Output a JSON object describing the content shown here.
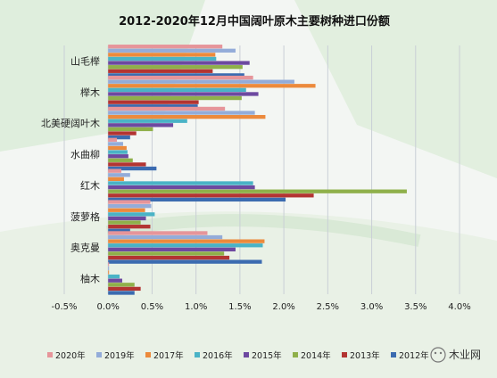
{
  "watermark": "木业网",
  "chart_data": {
    "type": "bar",
    "orientation": "horizontal",
    "title": "2012-2020年12月中国阔叶原木主要树种进口份额",
    "categories": [
      "山毛榉",
      "榉木",
      "北美硬阔叶木",
      "水曲柳",
      "红木",
      "菠萝格",
      "奥克曼",
      "柚木"
    ],
    "xlim": [
      -0.5,
      4.0
    ],
    "xticks": [
      "-0.5%",
      "0.0%",
      "0.5%",
      "1.0%",
      "1.5%",
      "2.0%",
      "2.5%",
      "3.0%",
      "3.5%",
      "4.0%"
    ],
    "xtick_values": [
      -0.5,
      0,
      0.5,
      1.0,
      1.5,
      2.0,
      2.5,
      3.0,
      3.5,
      4.0
    ],
    "grid": "vertical",
    "legend_position": "bottom",
    "series": [
      {
        "name": "2020年",
        "color": "#e6959a",
        "values": [
          1.3,
          1.65,
          1.33,
          0.1,
          0.15,
          0.48,
          1.13,
          0.01
        ]
      },
      {
        "name": "2019年",
        "color": "#93acd9",
        "values": [
          1.45,
          2.12,
          1.67,
          0.17,
          0.25,
          0.49,
          1.3,
          0.01
        ]
      },
      {
        "name": "2017年",
        "color": "#ec8a3c",
        "values": [
          1.22,
          2.36,
          1.79,
          0.21,
          0.18,
          0.42,
          1.78,
          0.01
        ]
      },
      {
        "name": "2016年",
        "color": "#4ab3c6",
        "values": [
          1.23,
          1.57,
          0.9,
          0.22,
          1.65,
          0.53,
          1.76,
          0.13
        ]
      },
      {
        "name": "2015年",
        "color": "#6d49a0",
        "values": [
          1.61,
          1.71,
          0.74,
          0.23,
          1.67,
          0.43,
          1.45,
          0.16
        ]
      },
      {
        "name": "2014年",
        "color": "#8fb04a",
        "values": [
          1.53,
          1.52,
          0.51,
          0.28,
          3.4,
          0.37,
          1.32,
          0.3
        ]
      },
      {
        "name": "2013年",
        "color": "#b33432",
        "values": [
          1.19,
          1.03,
          0.32,
          0.43,
          2.34,
          0.48,
          1.38,
          0.37
        ]
      },
      {
        "name": "2012年",
        "color": "#3b6bb0",
        "values": [
          1.55,
          1.02,
          0.25,
          0.55,
          2.02,
          0.25,
          1.75,
          0.3
        ]
      }
    ]
  }
}
